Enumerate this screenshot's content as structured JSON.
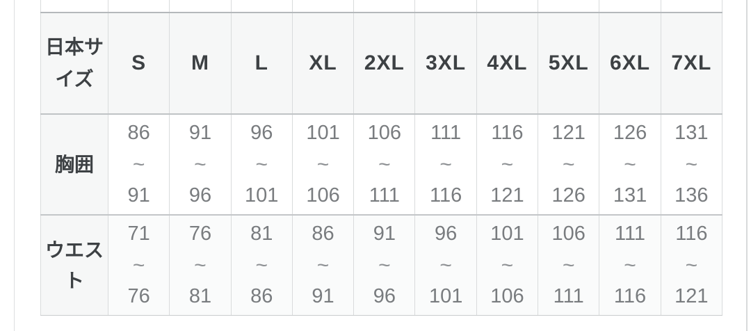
{
  "size_chart": {
    "corner_header": "日本サイズ",
    "sizes": [
      "S",
      "M",
      "L",
      "XL",
      "2XL",
      "3XL",
      "4XL",
      "5XL",
      "6XL",
      "7XL"
    ],
    "range_separator": "~",
    "rows": [
      {
        "label": "胸囲",
        "ranges": [
          {
            "from": "86",
            "to": "91"
          },
          {
            "from": "91",
            "to": "96"
          },
          {
            "from": "96",
            "to": "101"
          },
          {
            "from": "101",
            "to": "106"
          },
          {
            "from": "106",
            "to": "111"
          },
          {
            "from": "111",
            "to": "116"
          },
          {
            "from": "116",
            "to": "121"
          },
          {
            "from": "121",
            "to": "126"
          },
          {
            "from": "126",
            "to": "131"
          },
          {
            "from": "131",
            "to": "136"
          }
        ]
      },
      {
        "label": "ウエスト",
        "ranges": [
          {
            "from": "71",
            "to": "76"
          },
          {
            "from": "76",
            "to": "81"
          },
          {
            "from": "81",
            "to": "86"
          },
          {
            "from": "86",
            "to": "91"
          },
          {
            "from": "91",
            "to": "96"
          },
          {
            "from": "96",
            "to": "101"
          },
          {
            "from": "101",
            "to": "106"
          },
          {
            "from": "106",
            "to": "111"
          },
          {
            "from": "111",
            "to": "116"
          },
          {
            "from": "116",
            "to": "121"
          }
        ]
      }
    ],
    "colors": {
      "header_bg": "#f6f7f7",
      "chest_row_bg": "#ffffff",
      "waist_row_bg": "#fafbfb",
      "header_text": "#3d4144",
      "data_text": "#797c7f",
      "row_border": "#bfc3c5",
      "column_border": "#d9dbdc",
      "edge_rule": "#dcdedf"
    }
  }
}
